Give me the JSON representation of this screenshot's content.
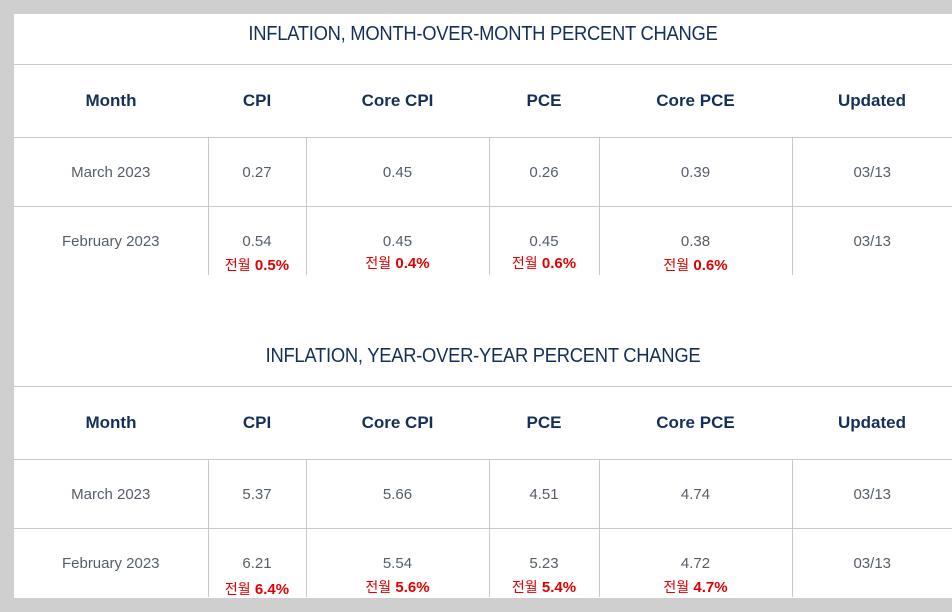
{
  "headers": [
    "Month",
    "CPI",
    "Core CPI",
    "PCE",
    "Core PCE",
    "Updated"
  ],
  "note_prefix": "전월",
  "mom": {
    "title": "INFLATION, MONTH-OVER-MONTH PERCENT CHANGE",
    "rows": [
      {
        "month": "March 2023",
        "cpi": "0.27",
        "core_cpi": "0.45",
        "pce": "0.26",
        "core_pce": "0.39",
        "updated": "03/13"
      },
      {
        "month": "February 2023",
        "cpi": "0.54",
        "core_cpi": "0.45",
        "pce": "0.45",
        "core_pce": "0.38",
        "updated": "03/13",
        "notes": {
          "cpi": "0.5%",
          "core_cpi": "0.4%",
          "pce": "0.6%",
          "core_pce": "0.6%"
        }
      }
    ]
  },
  "yoy": {
    "title": "INFLATION, YEAR-OVER-YEAR PERCENT CHANGE",
    "rows": [
      {
        "month": "March 2023",
        "cpi": "5.37",
        "core_cpi": "5.66",
        "pce": "4.51",
        "core_pce": "4.74",
        "updated": "03/13"
      },
      {
        "month": "February 2023",
        "cpi": "6.21",
        "core_cpi": "5.54",
        "pce": "5.23",
        "core_pce": "4.72",
        "updated": "03/13",
        "notes": {
          "cpi": "6.4%",
          "core_cpi": "5.6%",
          "pce": "5.4%",
          "core_pce": "4.7%"
        }
      }
    ]
  }
}
